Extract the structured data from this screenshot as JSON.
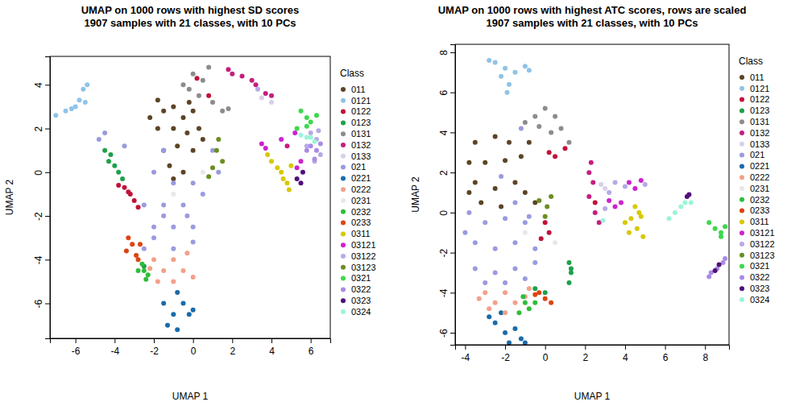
{
  "chart_data": [
    {
      "type": "scatter",
      "title": "UMAP on 1000 rows with highest SD scores",
      "subtitle": "1907 samples with 21 classes, with 10 PCs",
      "x_label": "UMAP 1",
      "y_label": "UMAP 2",
      "legend_title": "Class",
      "legend": "right",
      "marker": "circle",
      "xlim": [
        -7.3,
        7.0
      ],
      "ylim": [
        -7.6,
        5.3
      ],
      "xticks": [
        -6,
        -4,
        -2,
        0,
        2,
        4,
        6
      ],
      "yticks": [
        -6,
        -4,
        -2,
        0,
        2,
        4
      ],
      "series": [
        {
          "name": "011",
          "color": "#5c4425",
          "x": [
            -1.5,
            -1,
            -0.5,
            0,
            -1.8,
            -1,
            -0.3,
            0.3,
            -1.5,
            -0.8,
            0,
            -1.2,
            -0.5,
            -2.2,
            -0.2,
            0.5,
            -1.8,
            -1
          ],
          "values": [
            2.8,
            3,
            2.5,
            2.8,
            2,
            2,
            1.8,
            2,
            1,
            1.2,
            1,
            0.3,
            0,
            2.5,
            3.2,
            1.5,
            3.3,
            -0.3
          ]
        },
        {
          "name": "0121",
          "color": "#8fc3e8",
          "x": [
            -7,
            -6.5,
            -6,
            -5.8,
            -5.6,
            -5.4,
            -5.5,
            -6.2
          ],
          "values": [
            2.6,
            2.8,
            3,
            3.3,
            3.8,
            4,
            3.2,
            2.9
          ]
        },
        {
          "name": "0122",
          "color": "#c2113a",
          "x": [
            -3.5,
            -3.2,
            -3,
            -3.8,
            -2.8,
            0.2,
            0.8,
            -3.3
          ],
          "values": [
            -0.7,
            -1,
            -1.3,
            -0.6,
            -1.6,
            4.3,
            3.5,
            -0.9
          ]
        },
        {
          "name": "0123",
          "color": "#1fa04a",
          "x": [
            -4.3,
            -4,
            -3.8,
            -4.5,
            -3.6,
            -2.5,
            -4.2
          ],
          "values": [
            0.5,
            0.3,
            0,
            1,
            -0.3,
            -4.3,
            0.8
          ]
        },
        {
          "name": "0131",
          "color": "#8c8c8c",
          "x": [
            -0.5,
            0,
            0.5,
            -0.2,
            1,
            1.5,
            0.8,
            1.8,
            0.3
          ],
          "values": [
            4,
            4.5,
            4.2,
            3.8,
            3.2,
            2.8,
            4.8,
            2.9,
            3.5
          ]
        },
        {
          "name": "0132",
          "color": "#c41e7f",
          "x": [
            2,
            2.5,
            3,
            3.2,
            4,
            3.7,
            1.8,
            4.8
          ],
          "values": [
            4.5,
            4.4,
            4.2,
            4,
            3.5,
            3.6,
            4.7,
            1.2
          ]
        },
        {
          "name": "0133",
          "color": "#d8d0e8",
          "x": [
            3.5,
            4
          ],
          "values": [
            3.4,
            3.2
          ]
        },
        {
          "name": "021",
          "color": "#9a9ae0",
          "x": [
            -1.5,
            -2,
            -1,
            0,
            -2.5,
            -1.5,
            -0.5,
            0.5,
            -2,
            -1,
            0,
            -2,
            -1,
            0,
            -2.5,
            -4.8,
            -4.5,
            -3.5,
            1,
            1.3,
            -1.5,
            -0.3
          ],
          "values": [
            1,
            0,
            -0.5,
            -0.5,
            -1.5,
            -1.5,
            -1.5,
            -1,
            -2.5,
            -2.5,
            -2.5,
            -3,
            -3.5,
            -3.2,
            -3.5,
            1.5,
            1.8,
            1.2,
            1,
            0,
            -2,
            -2
          ]
        },
        {
          "name": "0221",
          "color": "#1a6baa",
          "x": [
            -1.5,
            -1,
            -0.5,
            -1.3,
            -0.8,
            -0.2,
            -0.8,
            0
          ],
          "values": [
            -6,
            -6.5,
            -6,
            -7,
            -5.5,
            -6.5,
            -7.2,
            -6.3
          ]
        },
        {
          "name": "0222",
          "color": "#f4a08a",
          "x": [
            -2,
            -1.5,
            -1,
            -0.5,
            -1.8,
            -1,
            0,
            -0.3,
            -2.2
          ],
          "values": [
            -4,
            -4.5,
            -4,
            -4.5,
            -5,
            -5,
            -4.8,
            -3.7,
            -4.4
          ]
        },
        {
          "name": "0231",
          "color": "#e8e8e8",
          "x": [
            -1,
            0.5
          ],
          "values": [
            -1,
            0
          ]
        },
        {
          "name": "0232",
          "color": "#2dbd3a",
          "x": [
            -2.5,
            -2.3,
            -2.8,
            -2.4,
            -2.6
          ],
          "values": [
            -4.5,
            -4.7,
            -4.5,
            -4.9,
            -4.2
          ]
        },
        {
          "name": "0233",
          "color": "#dd4411",
          "x": [
            -3.3,
            -3.1,
            -3.4,
            -2.9,
            -2.7,
            -2.8
          ],
          "values": [
            -3,
            -3.3,
            -3.6,
            -3.8,
            -3.3,
            -4
          ]
        },
        {
          "name": "0311",
          "color": "#d8c800",
          "x": [
            4,
            4.5,
            4.8,
            4.3,
            5,
            4.6,
            3.8,
            4.9
          ],
          "values": [
            0.5,
            0,
            -0.5,
            0.2,
            0.3,
            -0.3,
            0.8,
            -0.8
          ]
        },
        {
          "name": "03121",
          "color": "#cc22cc",
          "x": [
            3.5,
            3.7,
            5.2,
            5.5,
            5.3,
            4.5
          ],
          "values": [
            1.3,
            1.1,
            1.8,
            0.5,
            0.2,
            1.5
          ]
        },
        {
          "name": "03122",
          "color": "#b8a8e8",
          "x": [
            6,
            6.3,
            6.5,
            6.2,
            5.8,
            6.4,
            3.3
          ],
          "values": [
            1.8,
            1.5,
            0.8,
            0.5,
            1.2,
            1.9,
            3.8
          ]
        },
        {
          "name": "03123",
          "color": "#6b8e23",
          "x": [
            1.5,
            1.2,
            1,
            0.8,
            1.3
          ],
          "values": [
            0.5,
            1,
            0.2,
            -0.2,
            1.5
          ]
        },
        {
          "name": "0321",
          "color": "#3dd84d",
          "x": [
            5.5,
            5.8,
            6,
            5.8,
            6.3,
            5.3
          ],
          "values": [
            2.8,
            2.5,
            2.3,
            2.1,
            2.6,
            2
          ]
        },
        {
          "name": "0322",
          "color": "#a98be3",
          "x": [
            6,
            6.3,
            6.5,
            6.2,
            5.8
          ],
          "values": [
            1.2,
            1,
            1.3,
            0.6,
            1
          ]
        },
        {
          "name": "0323",
          "color": "#50107a",
          "x": [
            5.3,
            5.5,
            5.6
          ],
          "values": [
            -0.3,
            -0.5,
            0
          ]
        },
        {
          "name": "0324",
          "color": "#9cf5d8",
          "x": [
            5.5,
            5.8,
            6,
            6.2
          ],
          "values": [
            1.7,
            1.6,
            1.6,
            1.4
          ]
        }
      ]
    },
    {
      "type": "scatter",
      "title": "UMAP on 1000 rows with highest ATC scores, rows are scaled",
      "subtitle": "1907 samples with 21 classes, with 10 PCs",
      "x_label": "UMAP 1",
      "y_label": "UMAP 2",
      "legend_title": "Class",
      "legend": "right",
      "marker": "circle",
      "xlim": [
        -4.5,
        9.2
      ],
      "ylim": [
        -6.6,
        8.4
      ],
      "xticks": [
        -4,
        -2,
        0,
        2,
        4,
        6,
        8
      ],
      "yticks": [
        -6,
        -4,
        -2,
        0,
        2,
        4,
        6,
        8
      ],
      "series": [
        {
          "name": "011",
          "color": "#5c4425",
          "x": [
            -3.5,
            -2.5,
            -1.8,
            -3.8,
            -3,
            -2,
            -1.2,
            -3.5,
            -2.5,
            -1.5,
            -3.2,
            -2.2,
            -1,
            -0.8,
            -3.8,
            -0.5
          ],
          "values": [
            3.5,
            3.8,
            3.5,
            2.5,
            2.5,
            2.6,
            2.8,
            1.5,
            1.2,
            1.5,
            0.5,
            0.3,
            1,
            3.5,
            1,
            0.5
          ]
        },
        {
          "name": "0121",
          "color": "#8fc3e8",
          "x": [
            -2.5,
            -2,
            -1.5,
            -2.2,
            -1.8,
            -1.9,
            -1,
            -0.8,
            -2.8
          ],
          "values": [
            7.5,
            7.2,
            7,
            6.8,
            6.4,
            6,
            7.3,
            7.1,
            7.6
          ]
        },
        {
          "name": "0122",
          "color": "#c2113a",
          "x": [
            0.2,
            0.5,
            0,
            0.2,
            -0.2,
            1,
            2.5
          ],
          "values": [
            3,
            2.8,
            -0.5,
            -1,
            -1.3,
            3.2,
            0.5
          ]
        },
        {
          "name": "0123",
          "color": "#1fa04a",
          "x": [
            1.2,
            1.3,
            1.2,
            1.3,
            0,
            -0.5
          ],
          "values": [
            -2.5,
            -3,
            -3.5,
            -2.8,
            -4,
            -3.8
          ]
        },
        {
          "name": "0131",
          "color": "#8c8c8c",
          "x": [
            -1,
            -0.5,
            0,
            0.5,
            0.8,
            0.3,
            -0.3,
            1.2
          ],
          "values": [
            4.5,
            4.8,
            5.2,
            4.8,
            4.2,
            4,
            4.3,
            3.5
          ]
        },
        {
          "name": "0132",
          "color": "#c41e7f",
          "x": [
            2.2,
            2.4,
            2.3,
            2.5,
            2.7,
            2.2
          ],
          "values": [
            2,
            1.5,
            2.5,
            0,
            -0.5,
            0.8
          ]
        },
        {
          "name": "0133",
          "color": "#d8d0e8",
          "x": [
            2.8,
            3
          ],
          "values": [
            1.4,
            1.2
          ]
        },
        {
          "name": "021",
          "color": "#9a9ae0",
          "x": [
            -3.8,
            -3,
            -2,
            -1,
            -3.5,
            -2.5,
            -1.5,
            -0.5,
            -3.5,
            -2.5,
            -1.5,
            -0.5,
            -3,
            -2,
            -1,
            -2.2,
            -1.5,
            -4,
            -1.2,
            -0.8
          ],
          "values": [
            0,
            -0.5,
            -0.3,
            -0.5,
            -1.5,
            -1.8,
            -1.5,
            -1.8,
            -2.8,
            -3,
            -2.8,
            -2.5,
            -3.5,
            -3.5,
            -3.3,
            1.8,
            0.5,
            -1,
            4.2,
            -0.2
          ]
        },
        {
          "name": "0221",
          "color": "#1a6baa",
          "x": [
            -2.5,
            -2,
            -1.5,
            -1.2,
            -2.2,
            -1.8,
            -1,
            -2.8
          ],
          "values": [
            -5.5,
            -6,
            -5.8,
            -6.3,
            -5,
            -6.5,
            -6.5,
            -5.2
          ]
        },
        {
          "name": "0222",
          "color": "#f4a08a",
          "x": [
            -3,
            -2.5,
            -2,
            -1.5,
            -2.8,
            -1,
            -2,
            -3.3,
            -0.8
          ],
          "values": [
            -4,
            -4.5,
            -4,
            -4.5,
            -4.8,
            -4.2,
            -5,
            -4.3,
            -3.8
          ]
        },
        {
          "name": "0231",
          "color": "#e8e8e8",
          "x": [
            -1,
            0.5
          ],
          "values": [
            -1,
            -1.5
          ]
        },
        {
          "name": "0232",
          "color": "#2dbd3a",
          "x": [
            -1,
            -0.8,
            -1.3,
            -0.5,
            -1.1
          ],
          "values": [
            -4.5,
            -4.8,
            -5,
            -4.5,
            -4.2
          ]
        },
        {
          "name": "0233",
          "color": "#dd4411",
          "x": [
            -0.3,
            0,
            -0.5,
            0.3
          ],
          "values": [
            -4,
            -4.3,
            -4.1,
            -4.5
          ]
        },
        {
          "name": "0311",
          "color": "#d8c800",
          "x": [
            4,
            4.3,
            4.6,
            4.8,
            4.5,
            4.2,
            4.9,
            4.7
          ],
          "values": [
            -0.5,
            -0.3,
            -0.8,
            -0.2,
            0.3,
            -1,
            -1.2,
            0
          ]
        },
        {
          "name": "03121",
          "color": "#cc22cc",
          "x": [
            3.5,
            3.8,
            4.2,
            4.8,
            4.5,
            3.2
          ],
          "values": [
            0.3,
            0.5,
            1.5,
            1.6,
            1.2,
            0.6
          ]
        },
        {
          "name": "03122",
          "color": "#b8a8e8",
          "x": [
            3.2,
            3.5,
            3,
            5,
            4
          ],
          "values": [
            1,
            1.5,
            0.2,
            1.4,
            1.3
          ]
        },
        {
          "name": "03123",
          "color": "#6b8e23",
          "x": [
            0,
            0.3,
            0.1,
            -0.3
          ],
          "values": [
            -0.2,
            0.8,
            0.3,
            0.6
          ]
        },
        {
          "name": "0321",
          "color": "#3dd84d",
          "x": [
            8.2,
            8.5,
            8.8,
            9,
            8.8
          ],
          "values": [
            -0.5,
            -0.8,
            -1,
            -0.7,
            -1.2
          ]
        },
        {
          "name": "0322",
          "color": "#a98be3",
          "x": [
            8.3,
            8.6,
            8.9,
            9,
            8.2
          ],
          "values": [
            -3,
            -2.8,
            -2.5,
            -2.3,
            -3.2
          ]
        },
        {
          "name": "0323",
          "color": "#50107a",
          "x": [
            8.5,
            8.7,
            7.1,
            7.2
          ],
          "values": [
            -2.9,
            -2.6,
            0.8,
            0.9
          ]
        },
        {
          "name": "0324",
          "color": "#9cf5d8",
          "x": [
            6.5,
            6.8,
            7,
            7.3,
            2.9,
            6.2
          ],
          "values": [
            0,
            0.3,
            0.5,
            0.5,
            -0.4,
            -0.3
          ]
        }
      ]
    }
  ]
}
